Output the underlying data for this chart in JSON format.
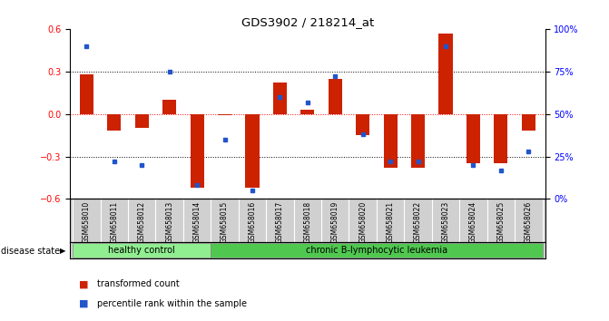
{
  "title": "GDS3902 / 218214_at",
  "samples": [
    "GSM658010",
    "GSM658011",
    "GSM658012",
    "GSM658013",
    "GSM658014",
    "GSM658015",
    "GSM658016",
    "GSM658017",
    "GSM658018",
    "GSM658019",
    "GSM658020",
    "GSM658021",
    "GSM658022",
    "GSM658023",
    "GSM658024",
    "GSM658025",
    "GSM658026"
  ],
  "red_bars": [
    0.28,
    -0.12,
    -0.1,
    0.1,
    -0.52,
    -0.01,
    -0.52,
    0.22,
    0.03,
    0.25,
    -0.15,
    -0.38,
    -0.38,
    0.57,
    -0.35,
    -0.35,
    -0.12
  ],
  "blue_dots_pct": [
    90,
    22,
    20,
    75,
    8,
    35,
    5,
    60,
    57,
    72,
    38,
    22,
    22,
    90,
    20,
    17,
    28
  ],
  "groups": [
    {
      "label": "healthy control",
      "start": 0,
      "end": 5,
      "color": "#90ee90"
    },
    {
      "label": "chronic B-lymphocytic leukemia",
      "start": 5,
      "end": 17,
      "color": "#50c850"
    }
  ],
  "ylim": [
    -0.6,
    0.6
  ],
  "yticks": [
    -0.6,
    -0.3,
    0.0,
    0.3,
    0.6
  ],
  "right_yticks": [
    0,
    25,
    50,
    75,
    100
  ],
  "right_yticklabels": [
    "0%",
    "25%",
    "50%",
    "75%",
    "100%"
  ],
  "bar_color": "#cc2200",
  "dot_color": "#2255cc",
  "bar_width": 0.5,
  "background_color": "#ffffff",
  "disease_state_label": "disease state",
  "legend_items": [
    {
      "label": "transformed count",
      "color": "#cc2200"
    },
    {
      "label": "percentile rank within the sample",
      "color": "#2255cc"
    }
  ]
}
